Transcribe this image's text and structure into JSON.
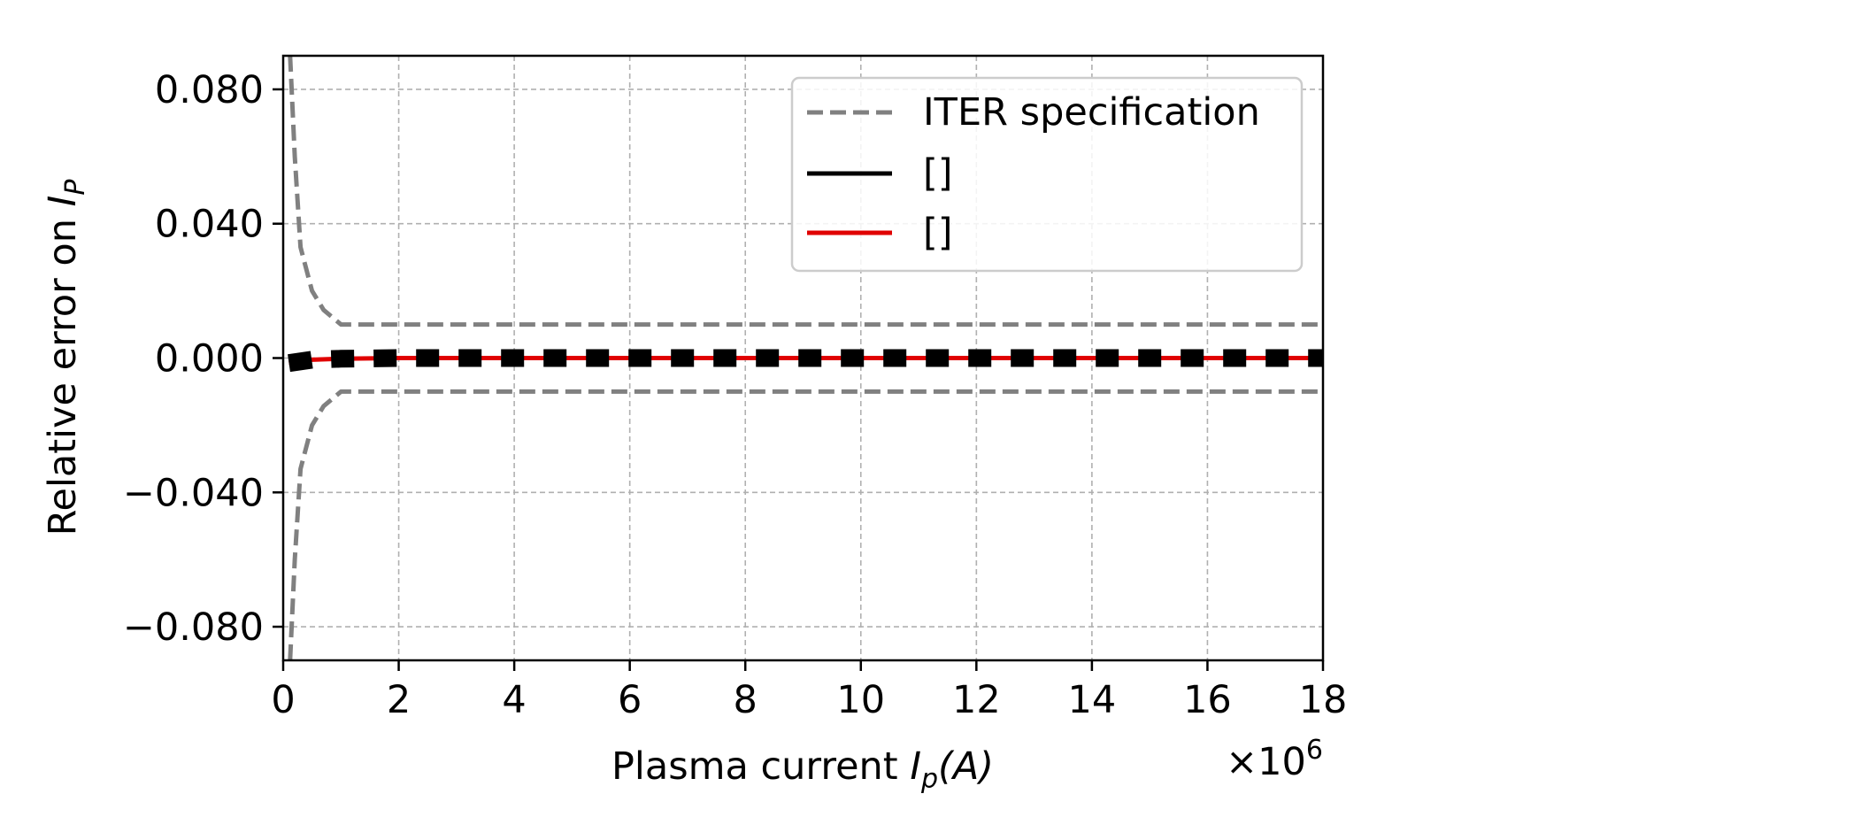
{
  "chart_data": {
    "type": "line",
    "xlabel": "Plasma current ",
    "xlabel_math": "I",
    "xlabel_math_sub": "p",
    "xlabel_unit": "(A)",
    "x_offset_text": "×10",
    "x_offset_exp": "6",
    "ylabel": "Relative error on ",
    "ylabel_math": "I",
    "ylabel_math_sub": "P",
    "xlim": [
      0,
      18
    ],
    "ylim": [
      -0.09,
      0.09
    ],
    "xticks": [
      0,
      2,
      4,
      6,
      8,
      10,
      12,
      14,
      16,
      18
    ],
    "xtick_labels": [
      "0",
      "2",
      "4",
      "6",
      "8",
      "10",
      "12",
      "14",
      "16",
      "18"
    ],
    "yticks": [
      0.08,
      0.04,
      0.0,
      -0.04,
      -0.08
    ],
    "ytick_labels": [
      "0.080",
      "0.040",
      "0.000",
      "−0.040",
      "−0.080"
    ],
    "grid": true,
    "legend_position": "top-right",
    "legend": [
      "ITER specification",
      "[]",
      "[]"
    ],
    "series": [
      {
        "name": "ITER specification",
        "color": "#808080",
        "style": "dashed",
        "band": "upper",
        "x": [
          0.12,
          0.2,
          0.3,
          0.5,
          0.7,
          1.0,
          1.5,
          2,
          4,
          6,
          8,
          10,
          12,
          14,
          16,
          18
        ],
        "y": [
          0.09,
          0.06,
          0.033,
          0.02,
          0.0143,
          0.01,
          0.01,
          0.01,
          0.01,
          0.01,
          0.01,
          0.01,
          0.01,
          0.01,
          0.01,
          0.01
        ]
      },
      {
        "name": "ITER specification",
        "color": "#808080",
        "style": "dashed",
        "band": "lower",
        "x": [
          0.12,
          0.2,
          0.3,
          0.5,
          0.7,
          1.0,
          1.5,
          2,
          4,
          6,
          8,
          10,
          12,
          14,
          16,
          18
        ],
        "y": [
          -0.09,
          -0.06,
          -0.033,
          -0.02,
          -0.0143,
          -0.01,
          -0.01,
          -0.01,
          -0.01,
          -0.01,
          -0.01,
          -0.01,
          -0.01,
          -0.01,
          -0.01,
          -0.01
        ]
      },
      {
        "name": "[]",
        "color": "#e00000",
        "style": "solid",
        "x": [
          0.1,
          0.5,
          1,
          2,
          4,
          6,
          8,
          10,
          12,
          14,
          16,
          18
        ],
        "y": [
          -0.0015,
          -0.0005,
          -0.0002,
          0.0,
          0.0,
          0.0,
          0.0,
          0.0,
          0.0,
          0.0,
          0.0,
          0.0
        ]
      },
      {
        "name": "[]",
        "color": "#000000",
        "style": "dashed-thick",
        "x": [
          0.1,
          0.5,
          1,
          2,
          4,
          6,
          8,
          10,
          12,
          14,
          16,
          18
        ],
        "y": [
          -0.0015,
          -0.0005,
          -0.0002,
          0.0,
          0.0,
          0.0,
          0.0,
          0.0,
          0.0,
          0.0,
          0.0,
          0.0
        ]
      }
    ]
  }
}
